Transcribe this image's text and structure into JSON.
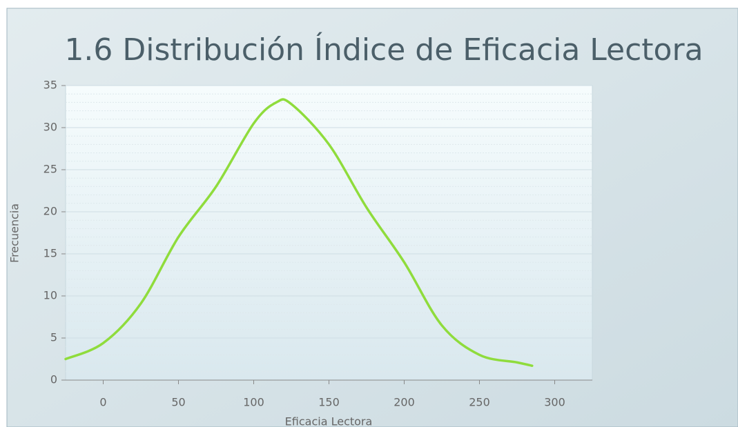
{
  "chart_data": {
    "type": "line",
    "title": "1.6 Distribución Índice de Eficacia Lectora",
    "x_label": "Eficacia Lectora",
    "y_label": "Frecuencia",
    "x": [
      -25,
      0,
      25,
      50,
      75,
      100,
      115,
      125,
      150,
      175,
      200,
      225,
      250,
      275,
      285
    ],
    "series": [
      {
        "name": "Frecuencia",
        "color": "#8fdc3c",
        "values": [
          2.5,
          4.4,
          9.1,
          17,
          23,
          30.5,
          33,
          32.8,
          28,
          20.5,
          14,
          6.5,
          3,
          2.1,
          1.7
        ]
      }
    ],
    "xlim": [
      -25,
      325
    ],
    "xticks": [
      0,
      50,
      100,
      150,
      200,
      250,
      300
    ],
    "ylim": [
      0,
      35
    ],
    "yticks": [
      0,
      5,
      10,
      15,
      20,
      25,
      30,
      35
    ],
    "grid": true
  }
}
